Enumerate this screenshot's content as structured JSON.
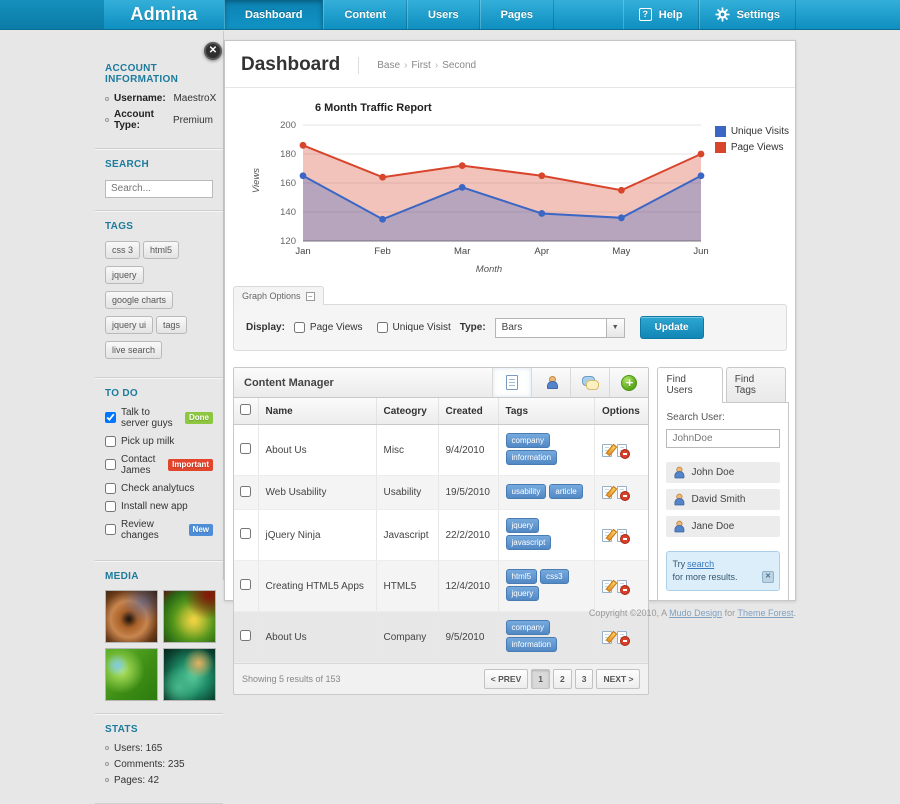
{
  "navbar": {
    "brand": "Admina",
    "tabs": [
      {
        "label": "Dashboard",
        "active": true
      },
      {
        "label": "Content",
        "active": false
      },
      {
        "label": "Users",
        "active": false
      },
      {
        "label": "Pages",
        "active": false
      }
    ],
    "help_label": "Help",
    "settings_label": "Settings"
  },
  "sidebar": {
    "account": {
      "heading": "ACCOUNT INFORMATION",
      "items": [
        {
          "label": "Username:",
          "value": "MaestroX"
        },
        {
          "label": "Account Type:",
          "value": "Premium"
        }
      ]
    },
    "search": {
      "heading": "SEARCH",
      "placeholder": "Search..."
    },
    "tags": {
      "heading": "TAGS",
      "items": [
        "css 3",
        "html5",
        "jquery",
        "google charts",
        "jquery ui",
        "tags",
        "live search"
      ]
    },
    "todo": {
      "heading": "TO DO",
      "items": [
        {
          "label": "Talk to server guys",
          "checked": true,
          "badge": "Done",
          "badge_color": "#8dc63f"
        },
        {
          "label": "Pick up milk",
          "checked": false
        },
        {
          "label": "Contact James",
          "checked": false,
          "badge": "Important",
          "badge_color": "#e2452c"
        },
        {
          "label": "Check analytucs",
          "checked": false
        },
        {
          "label": "Install new app",
          "checked": false
        },
        {
          "label": "Review changes",
          "checked": false,
          "badge": "New",
          "badge_color": "#4e8ed9"
        }
      ]
    },
    "media": {
      "heading": "MEDIA"
    },
    "stats": {
      "heading": "STATS",
      "items": [
        "Users: 165",
        "Comments: 235",
        "Pages: 42"
      ]
    }
  },
  "main": {
    "title": "Dashboard",
    "breadcrumb": [
      "Base",
      "First",
      "Second"
    ],
    "graph_options": {
      "tab_label": "Graph Options",
      "display_label": "Display:",
      "checkboxes": [
        "Page Views",
        "Unique Visist"
      ],
      "type_label": "Type:",
      "type_value": "Bars",
      "update_label": "Update"
    },
    "content_manager": {
      "title": "Content Manager",
      "toolbar_icons": [
        "documents",
        "users",
        "comments",
        "add"
      ],
      "active_toolbar_icon": "documents",
      "columns": [
        "Name",
        "Cateogry",
        "Created",
        "Tags",
        "Options"
      ],
      "rows": [
        {
          "name": "About Us",
          "category": "Misc",
          "created": "9/4/2010",
          "tags": [
            "company",
            "information"
          ]
        },
        {
          "name": "Web Usability",
          "category": "Usability",
          "created": "19/5/2010",
          "tags": [
            "usability",
            "article"
          ]
        },
        {
          "name": "jQuery Ninja",
          "category": "Javascript",
          "created": "22/2/2010",
          "tags": [
            "jquery",
            "javascript"
          ]
        },
        {
          "name": "Creating HTML5 Apps",
          "category": "HTML5",
          "created": "12/4/2010",
          "tags": [
            "html5",
            "css3",
            "jquery"
          ]
        },
        {
          "name": "About Us",
          "category": "Company",
          "created": "9/5/2010",
          "tags": [
            "company",
            "information"
          ]
        }
      ],
      "footer_text": "Showing 5 results of 153",
      "pagination": [
        {
          "label": "< PREV",
          "active": false
        },
        {
          "label": "1",
          "active": true
        },
        {
          "label": "2",
          "active": false
        },
        {
          "label": "3",
          "active": false
        },
        {
          "label": "NEXT >",
          "active": false
        }
      ]
    },
    "find_panel": {
      "tabs": [
        {
          "label": "Find Users",
          "active": true
        },
        {
          "label": "Find Tags",
          "active": false
        }
      ],
      "search_label": "Search User:",
      "search_value": "JohnDoe",
      "users": [
        "John Doe",
        "David Smith",
        "Jane Doe"
      ],
      "info_text_pre": "Try ",
      "info_link": "search",
      "info_text_post": " for more results."
    }
  },
  "chart_data": {
    "type": "area",
    "title": "6 Month Traffic Report",
    "categories": [
      "Jan",
      "Feb",
      "Mar",
      "Apr",
      "May",
      "Jun"
    ],
    "series": [
      {
        "name": "Unique Visits",
        "color": "#3b66c4",
        "values": [
          165,
          135,
          157,
          139,
          136,
          165
        ]
      },
      {
        "name": "Page Views",
        "color": "#d8442c",
        "values": [
          186,
          164,
          172,
          165,
          155,
          180
        ]
      }
    ],
    "xlabel": "Month",
    "ylabel": "Views",
    "ylim": [
      120,
      200
    ],
    "yticks": [
      120,
      140,
      160,
      180,
      200
    ],
    "grid": true,
    "legend_position": "right",
    "fill_opacity": 0.32
  },
  "footer": {
    "text_pre": "Copyright ©2010, A ",
    "link1": "Mudo Design",
    "text_mid": " for ",
    "link2": "Theme Forest",
    "text_post": "."
  }
}
